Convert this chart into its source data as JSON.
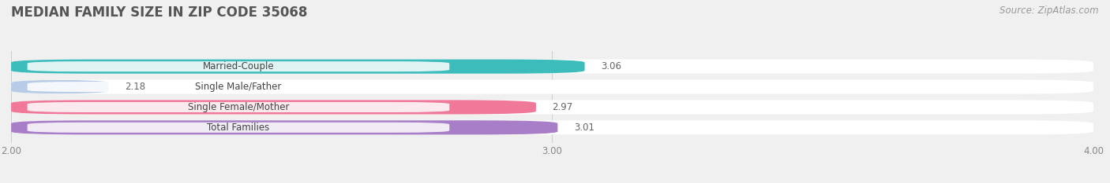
{
  "title": "MEDIAN FAMILY SIZE IN ZIP CODE 35068",
  "source": "Source: ZipAtlas.com",
  "categories": [
    "Married-Couple",
    "Single Male/Father",
    "Single Female/Mother",
    "Total Families"
  ],
  "values": [
    3.06,
    2.18,
    2.97,
    3.01
  ],
  "bar_colors": [
    "#3dbcbc",
    "#b8cce8",
    "#f07898",
    "#a87ec8"
  ],
  "xlim": [
    2.0,
    4.0
  ],
  "xticks": [
    2.0,
    3.0,
    4.0
  ],
  "xtick_labels": [
    "2.00",
    "3.00",
    "4.00"
  ],
  "background_color": "#f0f0f0",
  "bar_bg_color": "#e2e2e2",
  "chart_bg_color": "#ffffff",
  "title_fontsize": 12,
  "label_fontsize": 8.5,
  "value_fontsize": 8.5,
  "source_fontsize": 8.5
}
